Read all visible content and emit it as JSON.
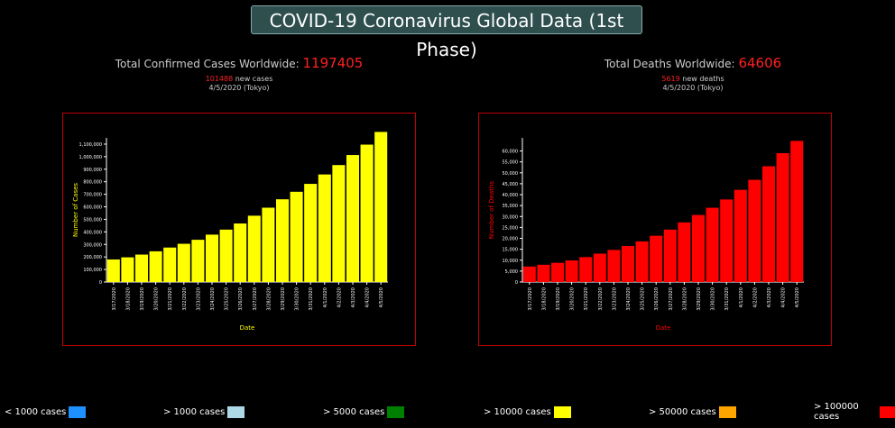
{
  "header": {
    "title": "COVID-19 Coronavirus Global Data (1st Phase)"
  },
  "confirmed": {
    "label": "Total Confirmed Cases Worldwide:",
    "total": "1197405",
    "new_value": "101488",
    "new_label": "new cases",
    "date": "4/5/2020 (Tokyo)"
  },
  "deaths": {
    "label": "Total Deaths Worldwide:",
    "total": "64606",
    "new_value": "5619",
    "new_label": "new deaths",
    "date": "4/5/2020 (Tokyo)"
  },
  "colors": {
    "cases": "#ffff00",
    "deaths": "#ff0000",
    "frame": "#c00000"
  },
  "legend": [
    {
      "label": "< 1000 cases",
      "color": "#1e90ff"
    },
    {
      "label": "> 1000 cases",
      "color": "#add8e6"
    },
    {
      "label": "> 5000 cases",
      "color": "#008000"
    },
    {
      "label": "> 10000 cases",
      "color": "#ffff00"
    },
    {
      "label": "> 50000 cases",
      "color": "#ffa500"
    },
    {
      "label": "> 100000 cases",
      "color": "#ff0000"
    }
  ],
  "chart_data": [
    {
      "type": "bar",
      "xlabel": "Date",
      "ylabel": "Number of Cases",
      "ylim": [
        0,
        1150000
      ],
      "yticks": [
        0,
        100000,
        200000,
        300000,
        400000,
        500000,
        600000,
        700000,
        800000,
        900000,
        1000000,
        1100000
      ],
      "ytick_labels": [
        "0",
        "100,000",
        "200,000",
        "300,000",
        "400,000",
        "500,000",
        "600,000",
        "700,000",
        "800,000",
        "900,000",
        "1,000,000",
        "1,100,000"
      ],
      "categories": [
        "3/17/2020",
        "3/18/2020",
        "3/19/2020",
        "3/20/2020",
        "3/21/2020",
        "3/22/2020",
        "3/23/2020",
        "3/24/2020",
        "3/25/2020",
        "3/26/2020",
        "3/27/2020",
        "3/28/2020",
        "3/29/2020",
        "3/30/2020",
        "3/31/2020",
        "4/1/2020",
        "4/2/2020",
        "4/3/2020",
        "4/4/2020",
        "4/5/2020"
      ],
      "values": [
        180000,
        197000,
        219000,
        245000,
        275000,
        305000,
        337000,
        378000,
        418000,
        467000,
        529000,
        593000,
        660000,
        720000,
        783000,
        858000,
        933000,
        1013000,
        1095917,
        1197405
      ],
      "bar_color": "#ffff00"
    },
    {
      "type": "bar",
      "xlabel": "Date",
      "ylabel": "Number of Deaths",
      "ylim": [
        0,
        66000
      ],
      "yticks": [
        0,
        5000,
        10000,
        15000,
        20000,
        25000,
        30000,
        35000,
        40000,
        45000,
        50000,
        55000,
        60000
      ],
      "ytick_labels": [
        "0",
        "5,000",
        "10,000",
        "15,000",
        "20,000",
        "25,000",
        "30,000",
        "35,000",
        "40,000",
        "45,000",
        "50,000",
        "55,000",
        "60,000"
      ],
      "categories": [
        "3/17/2020",
        "3/18/2020",
        "3/19/2020",
        "3/20/2020",
        "3/21/2020",
        "3/22/2020",
        "3/23/2020",
        "3/24/2020",
        "3/25/2020",
        "3/26/2020",
        "3/27/2020",
        "3/28/2020",
        "3/29/2020",
        "3/30/2020",
        "3/31/2020",
        "4/1/2020",
        "4/2/2020",
        "4/3/2020",
        "4/4/2020",
        "4/5/2020"
      ],
      "values": [
        7100,
        7900,
        8800,
        9900,
        11400,
        13000,
        14700,
        16500,
        18600,
        21200,
        24000,
        27300,
        30700,
        34000,
        37800,
        42200,
        46800,
        53000,
        58987,
        64606
      ],
      "bar_color": "#ff0000"
    }
  ]
}
